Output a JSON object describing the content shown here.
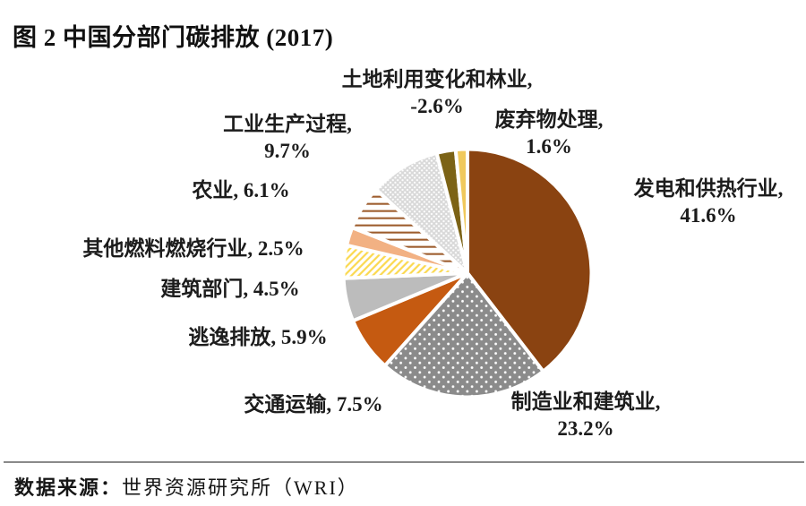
{
  "title": "图 2 中国分部门碳排放 (2017)",
  "source": {
    "prefix": "数据来源：",
    "text": "世界资源研究所（WRI）"
  },
  "chart_data": {
    "type": "pie",
    "title": "图 2 中国分部门碳排放 (2017)",
    "unit": "percent",
    "start_angle_deg": 0,
    "direction": "clockwise",
    "slices": [
      {
        "label": "发电和供热行业",
        "value": 41.6,
        "display": [
          "发电和供热行业,",
          "41.6%"
        ],
        "fill": "#8a4311",
        "pattern": "solid"
      },
      {
        "label": "制造业和建筑业",
        "value": 23.2,
        "display": [
          "制造业和建筑业,",
          "23.2%"
        ],
        "fill": "#8b8b8b",
        "pattern": "white-dots-coarse",
        "pattern_color": "#ffffff"
      },
      {
        "label": "交通运输",
        "value": 7.5,
        "display": [
          "交通运输, 7.5%"
        ],
        "fill": "#c55a11",
        "pattern": "solid"
      },
      {
        "label": "逃逸排放",
        "value": 5.9,
        "display": [
          "逃逸排放, 5.9%"
        ],
        "fill": "#bcbcbc",
        "pattern": "solid"
      },
      {
        "label": "建筑部门",
        "value": 4.5,
        "display": [
          "建筑部门, 4.5%"
        ],
        "fill": "#ffffff",
        "pattern": "diagonal-stripes",
        "pattern_color": "#fbd94f"
      },
      {
        "label": "其他燃料燃烧行业",
        "value": 2.5,
        "display": [
          "其他燃料燃烧行业, 2.5%"
        ],
        "fill": "#f2b183",
        "pattern": "solid"
      },
      {
        "label": "农业",
        "value": 6.1,
        "display": [
          "农业, 6.1%"
        ],
        "fill": "#ffffff",
        "pattern": "horizontal-stripes",
        "pattern_color": "#9d5c2d"
      },
      {
        "label": "工业生产过程",
        "value": 9.7,
        "display": [
          "工业生产过程,",
          "9.7%"
        ],
        "fill": "#dcdcdc",
        "pattern": "white-dots-fine",
        "pattern_color": "#ffffff"
      },
      {
        "label": "土地利用变化和林业",
        "value": -2.6,
        "display": [
          "土地利用变化和林业,",
          "-2.6%"
        ],
        "fill": "#7c6316",
        "pattern": "solid"
      },
      {
        "label": "废弃物处理",
        "value": 1.6,
        "display": [
          "废弃物处理,",
          "1.6%"
        ],
        "fill": "#f0c95c",
        "pattern": "solid"
      }
    ]
  }
}
